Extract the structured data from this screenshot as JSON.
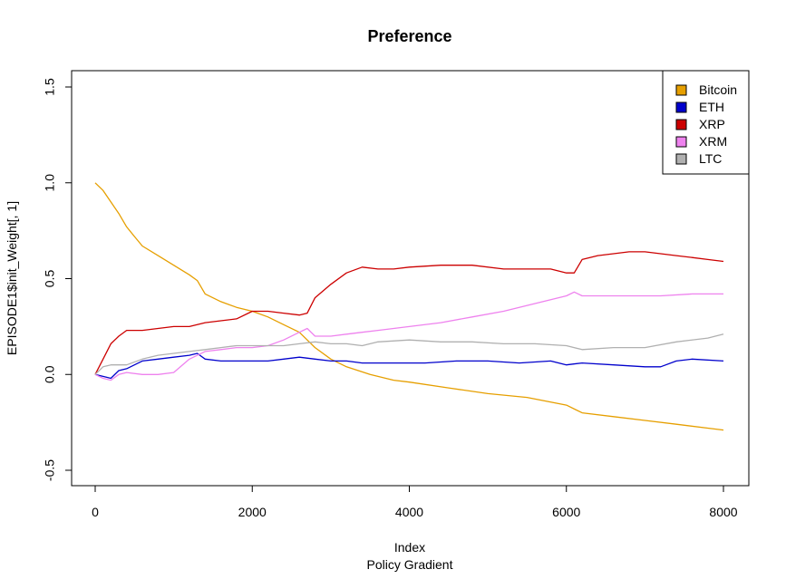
{
  "chart_data": {
    "type": "line",
    "title": "Preference",
    "xlabel": "Index",
    "sublabel": "Policy Gradient",
    "ylabel": "EPISODE1$init_Weight[, 1]",
    "xlim": [
      0,
      8000
    ],
    "ylim": [
      -0.5,
      1.5
    ],
    "x_ticks": [
      "0",
      "2000",
      "4000",
      "6000",
      "8000"
    ],
    "y_ticks": [
      "-0.5",
      "0.0",
      "0.5",
      "1.0",
      "1.5"
    ],
    "grid": false,
    "legend_position": "top-right",
    "series": [
      {
        "name": "Bitcoin",
        "color": "#E69F00",
        "points": [
          [
            0,
            1.0
          ],
          [
            100,
            0.96
          ],
          [
            200,
            0.9
          ],
          [
            300,
            0.84
          ],
          [
            400,
            0.77
          ],
          [
            500,
            0.72
          ],
          [
            600,
            0.67
          ],
          [
            800,
            0.62
          ],
          [
            1000,
            0.57
          ],
          [
            1200,
            0.52
          ],
          [
            1300,
            0.49
          ],
          [
            1400,
            0.42
          ],
          [
            1600,
            0.38
          ],
          [
            1800,
            0.35
          ],
          [
            2000,
            0.33
          ],
          [
            2200,
            0.3
          ],
          [
            2400,
            0.26
          ],
          [
            2600,
            0.22
          ],
          [
            2800,
            0.14
          ],
          [
            3000,
            0.08
          ],
          [
            3200,
            0.04
          ],
          [
            3500,
            0.0
          ],
          [
            3800,
            -0.03
          ],
          [
            4000,
            -0.04
          ],
          [
            4500,
            -0.07
          ],
          [
            5000,
            -0.1
          ],
          [
            5500,
            -0.12
          ],
          [
            6000,
            -0.16
          ],
          [
            6200,
            -0.2
          ],
          [
            6600,
            -0.22
          ],
          [
            7000,
            -0.24
          ],
          [
            7400,
            -0.26
          ],
          [
            7800,
            -0.28
          ],
          [
            8000,
            -0.29
          ]
        ]
      },
      {
        "name": "ETH",
        "color": "#0000CC",
        "points": [
          [
            0,
            0.0
          ],
          [
            100,
            -0.01
          ],
          [
            200,
            -0.02
          ],
          [
            300,
            0.02
          ],
          [
            400,
            0.03
          ],
          [
            500,
            0.05
          ],
          [
            600,
            0.07
          ],
          [
            800,
            0.08
          ],
          [
            1000,
            0.09
          ],
          [
            1200,
            0.1
          ],
          [
            1300,
            0.11
          ],
          [
            1400,
            0.08
          ],
          [
            1600,
            0.07
          ],
          [
            2000,
            0.07
          ],
          [
            2200,
            0.07
          ],
          [
            2400,
            0.08
          ],
          [
            2600,
            0.09
          ],
          [
            2800,
            0.08
          ],
          [
            3000,
            0.07
          ],
          [
            3200,
            0.07
          ],
          [
            3400,
            0.06
          ],
          [
            3800,
            0.06
          ],
          [
            4200,
            0.06
          ],
          [
            4600,
            0.07
          ],
          [
            5000,
            0.07
          ],
          [
            5400,
            0.06
          ],
          [
            5800,
            0.07
          ],
          [
            6000,
            0.05
          ],
          [
            6200,
            0.06
          ],
          [
            6600,
            0.05
          ],
          [
            7000,
            0.04
          ],
          [
            7200,
            0.04
          ],
          [
            7400,
            0.07
          ],
          [
            7600,
            0.08
          ],
          [
            8000,
            0.07
          ]
        ]
      },
      {
        "name": "XRP",
        "color": "#CC0000",
        "points": [
          [
            0,
            0.0
          ],
          [
            100,
            0.08
          ],
          [
            200,
            0.16
          ],
          [
            300,
            0.2
          ],
          [
            400,
            0.23
          ],
          [
            600,
            0.23
          ],
          [
            800,
            0.24
          ],
          [
            1000,
            0.25
          ],
          [
            1200,
            0.25
          ],
          [
            1400,
            0.27
          ],
          [
            1600,
            0.28
          ],
          [
            1800,
            0.29
          ],
          [
            2000,
            0.33
          ],
          [
            2200,
            0.33
          ],
          [
            2400,
            0.32
          ],
          [
            2600,
            0.31
          ],
          [
            2700,
            0.32
          ],
          [
            2800,
            0.4
          ],
          [
            3000,
            0.47
          ],
          [
            3200,
            0.53
          ],
          [
            3400,
            0.56
          ],
          [
            3600,
            0.55
          ],
          [
            3800,
            0.55
          ],
          [
            4000,
            0.56
          ],
          [
            4400,
            0.57
          ],
          [
            4800,
            0.57
          ],
          [
            5200,
            0.55
          ],
          [
            5600,
            0.55
          ],
          [
            5800,
            0.55
          ],
          [
            6000,
            0.53
          ],
          [
            6100,
            0.53
          ],
          [
            6200,
            0.6
          ],
          [
            6400,
            0.62
          ],
          [
            6600,
            0.63
          ],
          [
            6800,
            0.64
          ],
          [
            7000,
            0.64
          ],
          [
            7200,
            0.63
          ],
          [
            7400,
            0.62
          ],
          [
            7600,
            0.61
          ],
          [
            7800,
            0.6
          ],
          [
            8000,
            0.59
          ]
        ]
      },
      {
        "name": "XRM",
        "color": "#EE82EE",
        "points": [
          [
            0,
            0.0
          ],
          [
            100,
            -0.02
          ],
          [
            200,
            -0.03
          ],
          [
            300,
            0.0
          ],
          [
            400,
            0.01
          ],
          [
            600,
            0.0
          ],
          [
            800,
            0.0
          ],
          [
            1000,
            0.01
          ],
          [
            1200,
            0.08
          ],
          [
            1400,
            0.12
          ],
          [
            1600,
            0.13
          ],
          [
            1800,
            0.14
          ],
          [
            2000,
            0.14
          ],
          [
            2200,
            0.15
          ],
          [
            2400,
            0.18
          ],
          [
            2600,
            0.22
          ],
          [
            2700,
            0.24
          ],
          [
            2800,
            0.2
          ],
          [
            3000,
            0.2
          ],
          [
            3200,
            0.21
          ],
          [
            3400,
            0.22
          ],
          [
            3600,
            0.23
          ],
          [
            4000,
            0.25
          ],
          [
            4400,
            0.27
          ],
          [
            4800,
            0.3
          ],
          [
            5200,
            0.33
          ],
          [
            5600,
            0.37
          ],
          [
            6000,
            0.41
          ],
          [
            6100,
            0.43
          ],
          [
            6200,
            0.41
          ],
          [
            6400,
            0.41
          ],
          [
            6800,
            0.41
          ],
          [
            7200,
            0.41
          ],
          [
            7600,
            0.42
          ],
          [
            8000,
            0.42
          ]
        ]
      },
      {
        "name": "LTC",
        "color": "#B0B0B0",
        "points": [
          [
            0,
            0.0
          ],
          [
            100,
            0.04
          ],
          [
            200,
            0.05
          ],
          [
            300,
            0.05
          ],
          [
            400,
            0.05
          ],
          [
            600,
            0.08
          ],
          [
            800,
            0.1
          ],
          [
            1000,
            0.11
          ],
          [
            1200,
            0.12
          ],
          [
            1400,
            0.13
          ],
          [
            1600,
            0.14
          ],
          [
            1800,
            0.15
          ],
          [
            2000,
            0.15
          ],
          [
            2200,
            0.15
          ],
          [
            2400,
            0.15
          ],
          [
            2600,
            0.16
          ],
          [
            2800,
            0.17
          ],
          [
            3000,
            0.16
          ],
          [
            3200,
            0.16
          ],
          [
            3400,
            0.15
          ],
          [
            3600,
            0.17
          ],
          [
            4000,
            0.18
          ],
          [
            4400,
            0.17
          ],
          [
            4800,
            0.17
          ],
          [
            5200,
            0.16
          ],
          [
            5600,
            0.16
          ],
          [
            6000,
            0.15
          ],
          [
            6200,
            0.13
          ],
          [
            6600,
            0.14
          ],
          [
            7000,
            0.14
          ],
          [
            7400,
            0.17
          ],
          [
            7800,
            0.19
          ],
          [
            8000,
            0.21
          ]
        ]
      }
    ]
  }
}
